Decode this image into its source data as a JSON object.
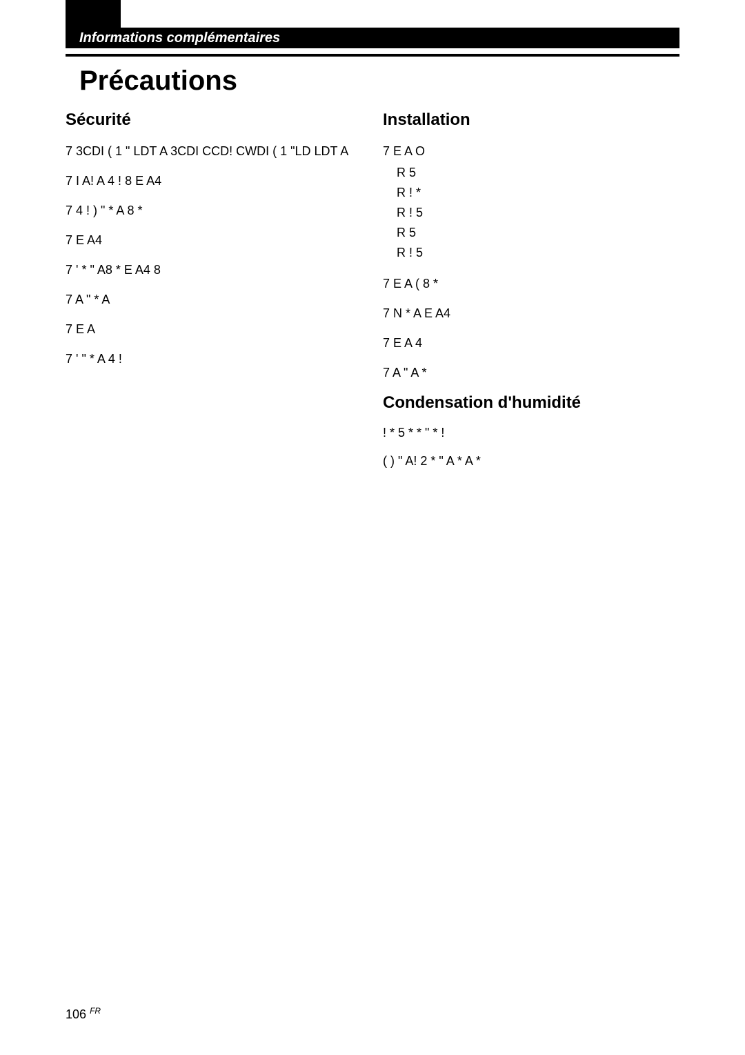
{
  "header": {
    "section_label": "Informations complémentaires"
  },
  "title": "Précautions",
  "left_column": {
    "heading": "Sécurité",
    "items": [
      "7 3CDI ( 1 \" LDT A 3CDI CCD! CWDI ( 1 \"LD LDT A",
      "7 I A! A 4 ! 8 E A4",
      "7 4 ! ) \" * A 8 *",
      "7 E A4",
      "7 ' * \" A8 * E A4 8",
      "7 A \" * A",
      "7 E A",
      "7 ' \" * A 4 !"
    ]
  },
  "right_column": {
    "heading": "Installation",
    "items": [
      {
        "text": "7 E A O",
        "sublist": [
          "R 5",
          "R ! *",
          "R ! 5",
          "R 5",
          "R ! 5"
        ]
      },
      {
        "text": "7 E A ( 8 *"
      },
      {
        "text": "7 N * A E A4"
      },
      {
        "text": "7 E A 4"
      },
      {
        "text": "7 A \" A *"
      }
    ],
    "humidity_heading": "Condensation d'humidité",
    "humidity_paragraphs": [
      "! * 5 * * \" * !",
      "( ) \" A! 2 * \" A * A *"
    ]
  },
  "page_number": "106",
  "page_lang": "FR"
}
